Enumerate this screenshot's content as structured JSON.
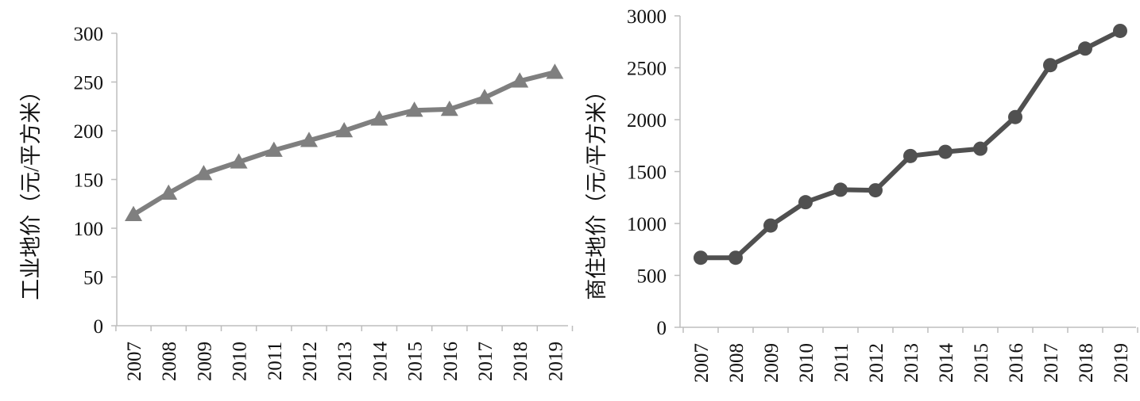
{
  "chart_data": [
    {
      "type": "line",
      "ylabel": "工业地价（元/平方米）",
      "ylim": [
        0,
        300
      ],
      "yticks": [
        0,
        50,
        100,
        150,
        200,
        250,
        300
      ],
      "categories": [
        "2007",
        "2008",
        "2009",
        "2010",
        "2011",
        "2012",
        "2013",
        "2014",
        "2015",
        "2016",
        "2017",
        "2018",
        "2019"
      ],
      "series": [
        {
          "values": [
            114,
            136,
            156,
            168,
            180,
            190,
            200,
            212,
            221,
            222,
            234,
            251,
            260
          ],
          "marker": "triangle",
          "color": "#7f7f7f"
        }
      ],
      "grid": false
    },
    {
      "type": "line",
      "ylabel": "商住地价（元/平方米）",
      "ylim": [
        0,
        3000
      ],
      "yticks": [
        0,
        500,
        1000,
        1500,
        2000,
        2500,
        3000
      ],
      "categories": [
        "2007",
        "2008",
        "2009",
        "2010",
        "2011",
        "2012",
        "2013",
        "2014",
        "2015",
        "2016",
        "2017",
        "2018",
        "2019"
      ],
      "series": [
        {
          "values": [
            670,
            670,
            980,
            1205,
            1325,
            1320,
            1650,
            1690,
            1720,
            2025,
            2525,
            2685,
            2855
          ],
          "marker": "circle",
          "color": "#505050"
        }
      ],
      "grid": false
    }
  ]
}
